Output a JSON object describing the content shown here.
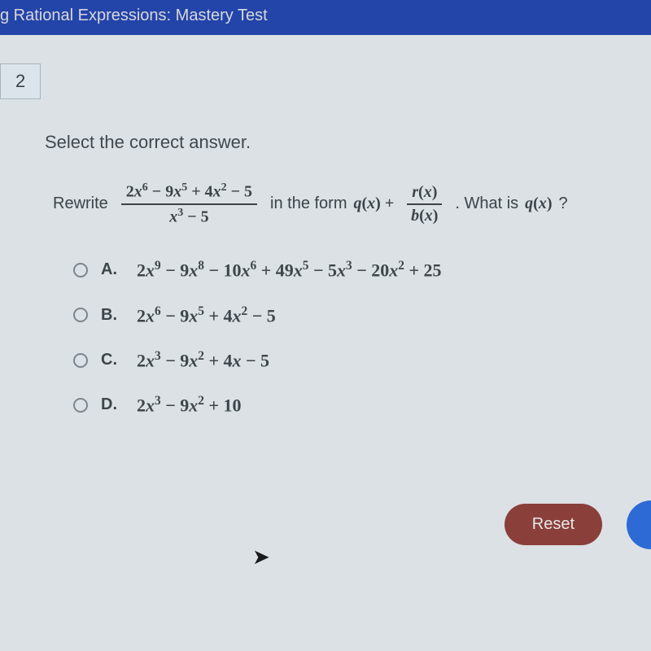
{
  "header": {
    "title": "g Rational Expressions: Mastery Test",
    "background_color": "#2344a8",
    "text_color": "#d8d8dc"
  },
  "question_number": "2",
  "prompt": "Select the correct answer.",
  "question": {
    "prefix": "Rewrite",
    "fraction1_num": "2x⁶ − 9x⁵ + 4x² − 5",
    "fraction1_den": "x³ − 5",
    "middle1": "in the form",
    "form_qx": "q(x) +",
    "fraction2_num": "r(x)",
    "fraction2_den": "b(x)",
    "suffix": ". What is",
    "qx_question": "q(x)",
    "question_mark": "?"
  },
  "answers": [
    {
      "letter": "A.",
      "expr": "2x⁹ − 9x⁸ − 10x⁶ + 49x⁵ − 5x³ − 20x² + 25"
    },
    {
      "letter": "B.",
      "expr": "2x⁶ − 9x⁵ + 4x² − 5"
    },
    {
      "letter": "C.",
      "expr": "2x³ − 9x² + 4x − 5"
    },
    {
      "letter": "D.",
      "expr": "2x³ − 9x² + 10"
    }
  ],
  "reset_button": {
    "label": "Reset",
    "bg_color": "#8a3f3a",
    "text_color": "#e8e8e8"
  },
  "colors": {
    "page_bg": "#dce1e5",
    "text_primary": "#3a4449",
    "radio_border": "#7a8690"
  }
}
